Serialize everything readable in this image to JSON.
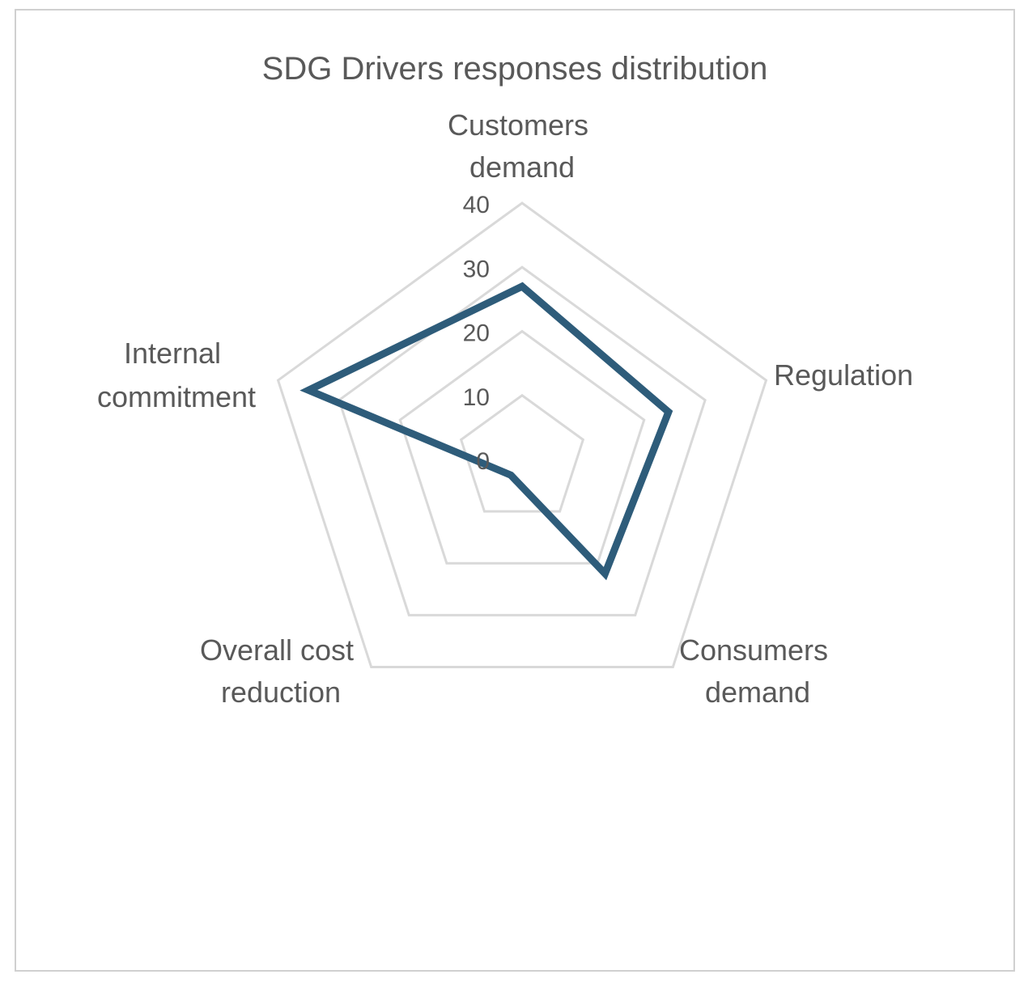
{
  "chart_data": {
    "type": "radar",
    "title": "SDG Drivers responses distribution",
    "categories": [
      "Customers demand",
      "Regulation",
      "Consumers demand",
      "Overall cost reduction",
      "Internal commitment"
    ],
    "series": [
      {
        "values": [
          27,
          24,
          22,
          3,
          35
        ],
        "color": "#2e5c7a"
      }
    ],
    "rlim": [
      0,
      40
    ],
    "ticks": [
      0,
      10,
      20,
      30,
      40
    ],
    "grid": true,
    "legend": "none",
    "grid_color": "#d9d9d9"
  }
}
